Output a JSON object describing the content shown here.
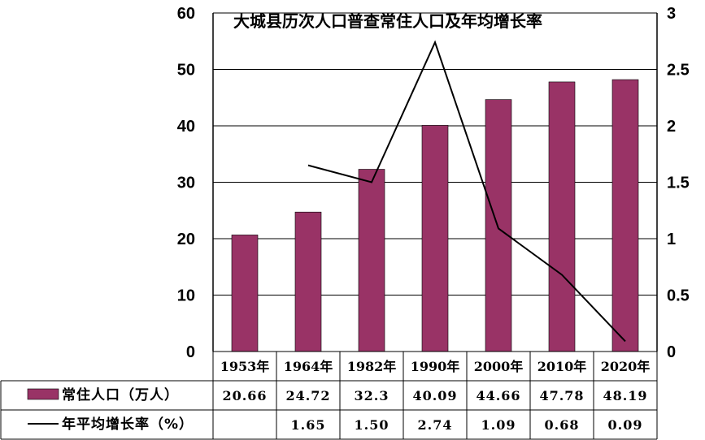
{
  "chart_data": {
    "type": "bar+line",
    "title": "大城县历次人口普查常住人口及年均增长率",
    "categories": [
      "1953年",
      "1964年",
      "1982年",
      "1990年",
      "2000年",
      "2010年",
      "2020年"
    ],
    "series": [
      {
        "name": "常住人口（万人）",
        "type": "bar",
        "axis": "left",
        "color": "#993366",
        "values": [
          20.66,
          24.72,
          32.3,
          40.09,
          44.66,
          47.78,
          48.19
        ],
        "labels": [
          "20.66",
          "24.72",
          "32.3",
          "40.09",
          "44.66",
          "47.78",
          "48.19"
        ]
      },
      {
        "name": "年平均增长率（%）",
        "type": "line",
        "axis": "right",
        "color": "#000000",
        "values": [
          null,
          1.65,
          1.5,
          2.74,
          1.09,
          0.68,
          0.09
        ],
        "labels": [
          "",
          "1.65",
          "1.50",
          "2.74",
          "1.09",
          "0.68",
          "0.09"
        ]
      }
    ],
    "y_left": {
      "min": 0,
      "max": 60,
      "ticks": [
        "0",
        "10",
        "20",
        "30",
        "40",
        "50",
        "60"
      ]
    },
    "y_right": {
      "min": 0,
      "max": 3,
      "ticks": [
        "0",
        "0.5",
        "1",
        "1.5",
        "2",
        "2.5",
        "3"
      ]
    },
    "grid": true,
    "legend": "data-table-left"
  }
}
